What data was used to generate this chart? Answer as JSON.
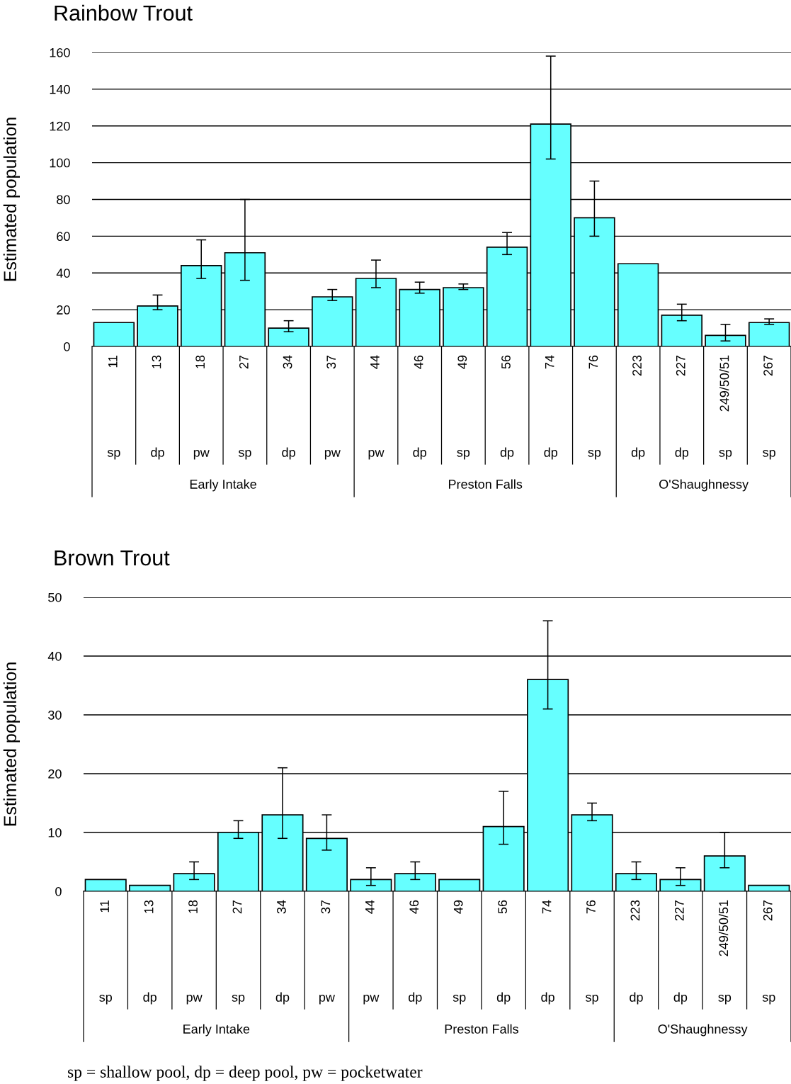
{
  "chart_data": [
    {
      "type": "bar",
      "title": "Rainbow Trout",
      "ylabel": "Estimated population",
      "categories": [
        "11",
        "13",
        "18",
        "27",
        "34",
        "37",
        "44",
        "46",
        "49",
        "56",
        "74",
        "76",
        "223",
        "227",
        "249/50/51",
        "267"
      ],
      "values": [
        13,
        22,
        44,
        51,
        10,
        27,
        37,
        31,
        32,
        54,
        121,
        70,
        45,
        17,
        6,
        13
      ],
      "errors": [
        null,
        [
          20,
          28
        ],
        [
          37,
          58
        ],
        [
          36,
          80
        ],
        [
          8,
          14
        ],
        [
          25,
          31
        ],
        [
          32,
          47
        ],
        [
          29,
          35
        ],
        [
          31,
          34
        ],
        [
          50,
          62
        ],
        [
          102,
          158
        ],
        [
          60,
          90
        ],
        null,
        [
          14,
          23
        ],
        [
          3,
          12
        ],
        [
          12,
          15
        ]
      ],
      "color": "#66ffff",
      "ylim": [
        0,
        160
      ],
      "yticks": [
        0,
        20,
        40,
        60,
        80,
        100,
        120,
        140,
        160
      ],
      "grid": "y",
      "annotations": [
        "sp",
        "dp",
        "pw",
        "sp",
        "dp",
        "pw",
        "pw",
        "dp",
        "sp",
        "dp",
        "dp",
        "sp",
        "dp",
        "dp",
        "sp",
        "sp",
        "Early Intake",
        "Preston Falls",
        "O'Shaughnessy"
      ]
    },
    {
      "type": "bar",
      "title": "Brown Trout",
      "ylabel": "Estimated population",
      "categories": [
        "11",
        "13",
        "18",
        "27",
        "34",
        "37",
        "44",
        "46",
        "49",
        "56",
        "74",
        "76",
        "223",
        "227",
        "249/50/51",
        "267"
      ],
      "values": [
        2,
        1,
        3,
        10,
        13,
        9,
        2,
        3,
        2,
        11,
        36,
        13,
        3,
        2,
        6,
        1
      ],
      "errors": [
        null,
        null,
        [
          2,
          5
        ],
        [
          9,
          12
        ],
        [
          9,
          21
        ],
        [
          7,
          13
        ],
        [
          1,
          4
        ],
        [
          2,
          5
        ],
        null,
        [
          8,
          17
        ],
        [
          31,
          46
        ],
        [
          12,
          15
        ],
        [
          2,
          5
        ],
        [
          1,
          4
        ],
        [
          4,
          10
        ],
        null
      ],
      "color": "#66ffff",
      "ylim": [
        0,
        50
      ],
      "yticks": [
        0,
        10,
        20,
        30,
        40,
        50
      ],
      "grid": "y",
      "annotations": [
        "sp",
        "dp",
        "pw",
        "sp",
        "dp",
        "pw",
        "pw",
        "dp",
        "sp",
        "dp",
        "dp",
        "sp",
        "dp",
        "dp",
        "sp",
        "sp",
        "Early Intake",
        "Preston Falls",
        "O'Shaughnessy",
        "sp = shallow pool, dp = deep pool, pw = pocketwater"
      ]
    }
  ]
}
